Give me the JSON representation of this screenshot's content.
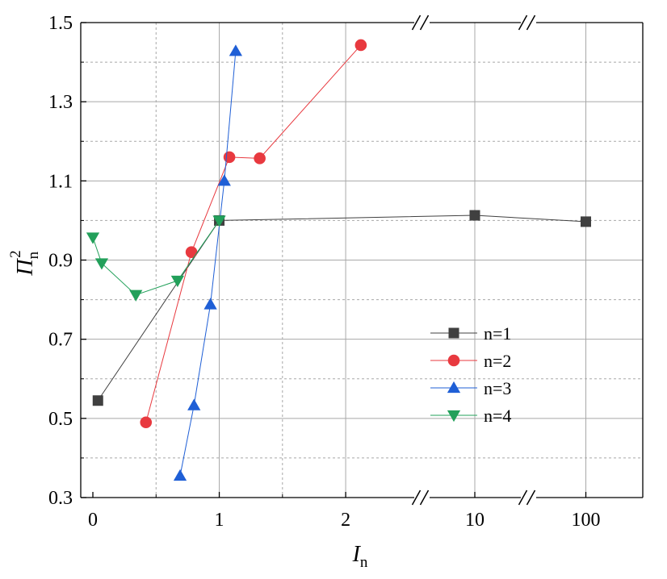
{
  "chart_data": {
    "type": "line",
    "xlabel": "I",
    "xlabel_sub": "n",
    "ylabel": "Π",
    "ylabel_sub": "n",
    "ylabel_sup": "2",
    "ylim": [
      0.3,
      1.5
    ],
    "y_ticks": [
      0.3,
      0.5,
      0.7,
      0.9,
      1.1,
      1.3,
      1.5
    ],
    "x_axis": {
      "scale": "broken",
      "segments": [
        {
          "range": [
            0,
            2.6
          ],
          "ticks": [
            0,
            1,
            2
          ]
        },
        {
          "range": [
            9,
            11
          ],
          "ticks": [
            10
          ]
        },
        {
          "range": [
            90,
            110
          ],
          "ticks": [
            100
          ]
        }
      ],
      "breaks": [
        [
          2.6,
          9
        ],
        [
          11,
          90
        ]
      ]
    },
    "grid": true,
    "legend_position": "center-right",
    "series": [
      {
        "name": "n=1",
        "marker": "square",
        "color": "#404040",
        "x": [
          0.04,
          1.0,
          10.0,
          100.0
        ],
        "y": [
          0.545,
          1.0,
          1.013,
          0.997
        ]
      },
      {
        "name": "n=2",
        "marker": "circle",
        "color": "#e8393f",
        "x": [
          0.42,
          0.78,
          1.08,
          1.32,
          2.12
        ],
        "y": [
          0.49,
          0.92,
          1.16,
          1.157,
          1.443
        ]
      },
      {
        "name": "n=3",
        "marker": "triangle-up",
        "color": "#1f5fd6",
        "x": [
          0.69,
          0.8,
          0.93,
          1.04,
          1.13
        ],
        "y": [
          0.355,
          0.533,
          0.788,
          1.1,
          1.428
        ]
      },
      {
        "name": "n=4",
        "marker": "triangle-down",
        "color": "#22a05a",
        "x": [
          0.0,
          0.07,
          0.34,
          0.67,
          1.0
        ],
        "y": [
          0.957,
          0.892,
          0.812,
          0.848,
          1.0
        ]
      }
    ]
  }
}
